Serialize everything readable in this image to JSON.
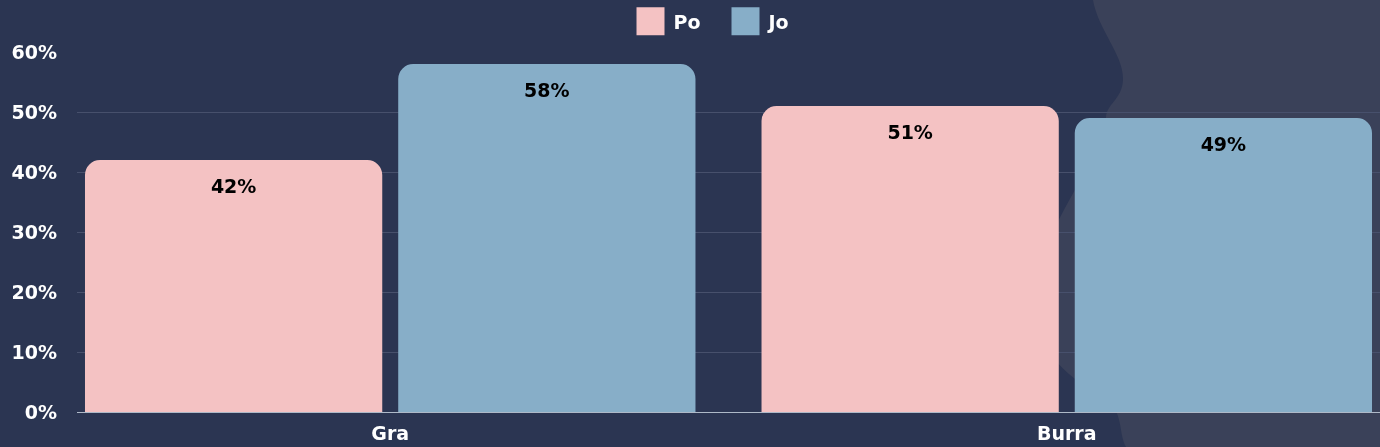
{
  "chart_data": {
    "type": "bar",
    "categories": [
      "Gra",
      "Burra"
    ],
    "series": [
      {
        "name": "Po",
        "color": "#f4c2c3",
        "values": [
          42,
          51
        ],
        "value_labels": [
          "42%",
          "51%"
        ]
      },
      {
        "name": "Jo",
        "color": "#87aec8",
        "values": [
          58,
          49
        ],
        "value_labels": [
          "58%",
          "49%"
        ]
      }
    ],
    "ylim": [
      0,
      60
    ],
    "yticks": [
      {
        "value": 0,
        "label": "0%"
      },
      {
        "value": 10,
        "label": "10%"
      },
      {
        "value": 20,
        "label": "20%"
      },
      {
        "value": 30,
        "label": "30%"
      },
      {
        "value": 40,
        "label": "40%"
      },
      {
        "value": 50,
        "label": "50%"
      },
      {
        "value": 60,
        "label": "60%"
      }
    ],
    "grid": "y",
    "legend": "top"
  }
}
